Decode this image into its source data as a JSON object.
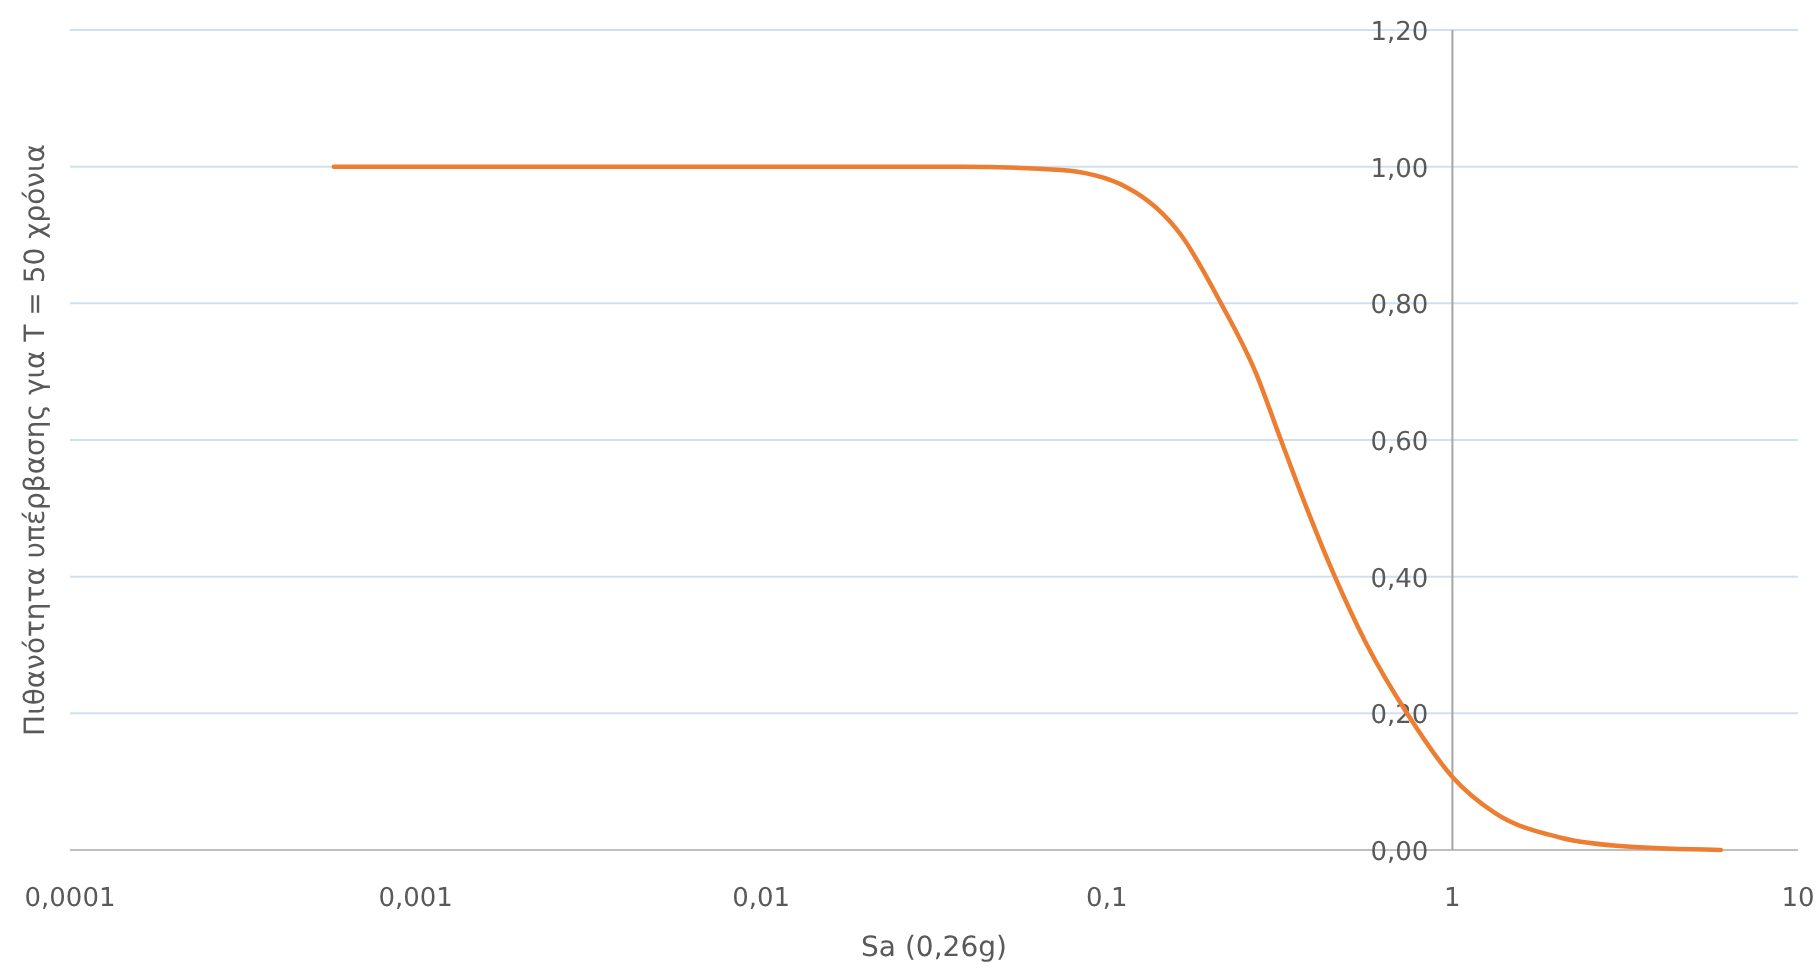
{
  "chart_data": {
    "type": "line",
    "xlabel": "Sa (0,26g)",
    "ylabel": "Πιθανότητα υπέρβασης για T = 50 χρόνια",
    "log": "x",
    "x": [
      0.00058,
      0.0378,
      0.0736,
      0.114,
      0.164,
      0.214,
      0.269,
      0.319,
      0.379,
      0.457,
      0.566,
      0.739,
      1.0,
      1.33,
      2.06,
      3.2,
      5.98
    ],
    "series": [
      {
        "color": "#ed7d31",
        "values": [
          1.0,
          1.0,
          0.995,
          0.97,
          0.9,
          0.8,
          0.7,
          0.6,
          0.5,
          0.4,
          0.3,
          0.2,
          0.107,
          0.054,
          0.018,
          0.005,
          0.0
        ]
      }
    ],
    "xlim": [
      0.0001,
      10
    ],
    "xticks": [
      {
        "value": 0.0001,
        "label": "0,0001"
      },
      {
        "value": 0.001,
        "label": "0,001"
      },
      {
        "value": 0.01,
        "label": "0,01"
      },
      {
        "value": 0.1,
        "label": "0,1"
      },
      1,
      10
    ],
    "ylim": [
      0,
      1.2
    ],
    "yticks": [
      {
        "value": 0,
        "label": "0,00"
      },
      {
        "value": 0.2,
        "label": "0,20"
      },
      {
        "value": 0.4,
        "label": "0,40"
      },
      {
        "value": 0.6,
        "label": "0,60"
      },
      {
        "value": 0.8,
        "label": "0,80"
      },
      {
        "value": 1,
        "label": "1,00"
      },
      {
        "value": 1.2,
        "label": "1,20"
      }
    ],
    "grid": "y",
    "marker": "none",
    "line_style": "solid"
  }
}
